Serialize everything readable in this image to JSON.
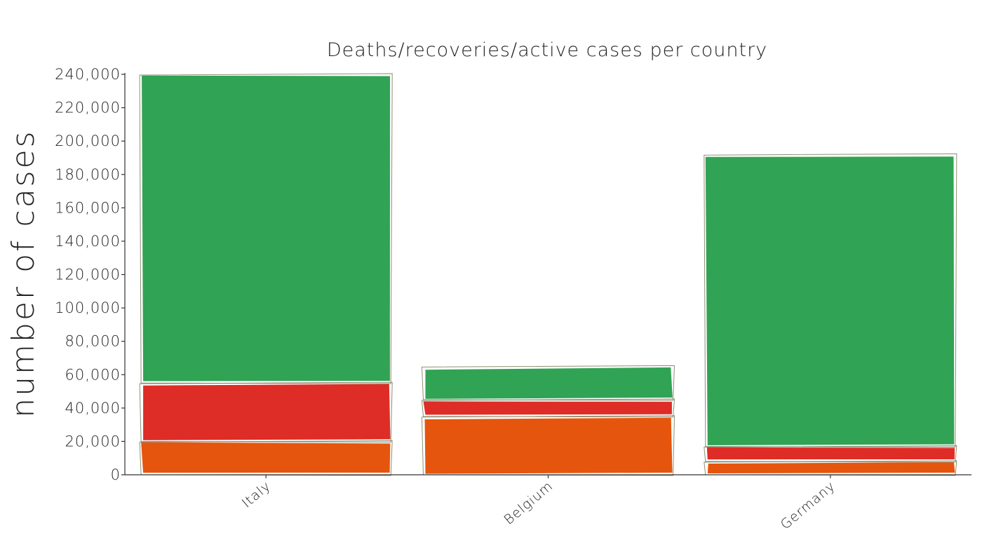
{
  "chart_data": {
    "type": "bar",
    "stacked": true,
    "title": "Deaths/recoveries/active cases per country",
    "xlabel": "",
    "ylabel": "number of cases",
    "categories": [
      "Italy",
      "Belgium",
      "Germany"
    ],
    "series": [
      {
        "color": "#e6550d",
        "values": [
          20000,
          35000,
          8000
        ]
      },
      {
        "color": "#de2d26",
        "values": [
          35000,
          10000,
          9000
        ]
      },
      {
        "color": "#31a354",
        "values": [
          185000,
          20000,
          175000
        ]
      }
    ],
    "ylim": [
      0,
      240000
    ],
    "yticks": [
      0,
      20000,
      40000,
      60000,
      80000,
      100000,
      120000,
      140000,
      160000,
      180000,
      200000,
      220000,
      240000
    ],
    "ytick_labels": [
      "0",
      "20,000",
      "40,000",
      "60,000",
      "80,000",
      "100,000",
      "120,000",
      "140,000",
      "160,000",
      "180,000",
      "200,000",
      "220,000",
      "240,000"
    ],
    "grid": false,
    "legend": "none"
  }
}
